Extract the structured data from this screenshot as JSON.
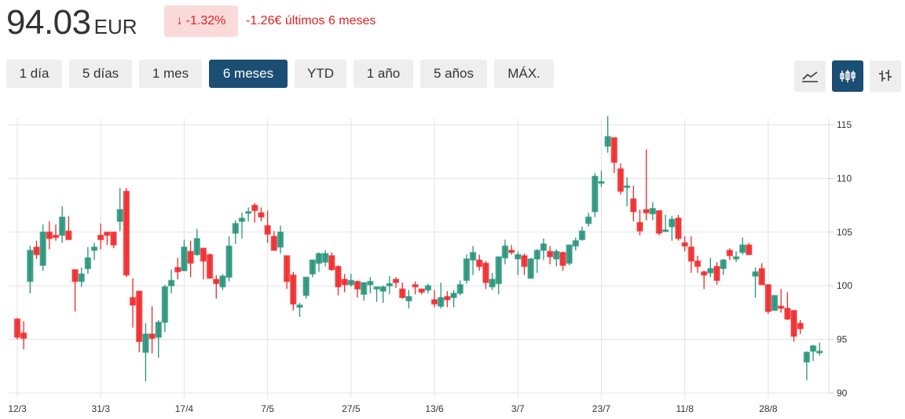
{
  "header": {
    "price": "94.03",
    "currency": "EUR",
    "badge_icon": "arrow-down-icon",
    "badge_text": "-1.32%",
    "change_text": "-1.26€ últimos 6 meses",
    "down_color": "#e0211f"
  },
  "ranges": [
    {
      "label": "1 día"
    },
    {
      "label": "5 días"
    },
    {
      "label": "1 mes"
    },
    {
      "label": "6 meses",
      "active": true
    },
    {
      "label": "YTD"
    },
    {
      "label": "1 año"
    },
    {
      "label": "5 años"
    },
    {
      "label": "MÁX."
    }
  ],
  "chart_types": [
    {
      "name": "line-chart-icon"
    },
    {
      "name": "candlestick-chart-icon",
      "active": true
    },
    {
      "name": "ohlc-chart-icon"
    }
  ],
  "chart_data": {
    "type": "candlestick",
    "up_color": "#26937a",
    "down_color": "#f0282a",
    "ylim": [
      90,
      115
    ],
    "yticks": [
      90,
      95,
      100,
      105,
      110,
      115
    ],
    "grid": true,
    "xticks": [
      {
        "label": "12/3",
        "index": 0
      },
      {
        "label": "31/3",
        "index": 13
      },
      {
        "label": "17/4",
        "index": 26
      },
      {
        "label": "7/5",
        "index": 39
      },
      {
        "label": "27/5",
        "index": 52
      },
      {
        "label": "13/6",
        "index": 65
      },
      {
        "label": "3/7",
        "index": 78
      },
      {
        "label": "23/7",
        "index": 91
      },
      {
        "label": "11/8",
        "index": 104
      },
      {
        "label": "28/8",
        "index": 117
      }
    ],
    "ohlc": [
      [
        96.9,
        97.0,
        95.0,
        95.2
      ],
      [
        95.6,
        96.7,
        94.1,
        95.1
      ],
      [
        100.4,
        103.7,
        99.3,
        103.3
      ],
      [
        103.6,
        104.2,
        102.5,
        102.9
      ],
      [
        101.9,
        105.7,
        101.4,
        105.0
      ],
      [
        105.0,
        106.0,
        103.4,
        104.4
      ],
      [
        104.7,
        105.7,
        104.2,
        104.5
      ],
      [
        104.7,
        107.4,
        104.0,
        106.4
      ],
      [
        105.1,
        106.5,
        104.3,
        104.3
      ],
      [
        101.5,
        101.5,
        97.6,
        100.4
      ],
      [
        100.4,
        101.7,
        99.9,
        101.1
      ],
      [
        101.6,
        103.6,
        101.1,
        102.6
      ],
      [
        103.3,
        104.0,
        102.4,
        103.6
      ],
      [
        104.7,
        105.8,
        103.4,
        104.3
      ],
      [
        105.0,
        105.0,
        103.8,
        104.7
      ],
      [
        105.0,
        105.0,
        103.5,
        103.8
      ],
      [
        106.0,
        109.1,
        105.1,
        107.1
      ],
      [
        108.8,
        109.1,
        100.8,
        101.0
      ],
      [
        98.9,
        100.7,
        96.1,
        98.2
      ],
      [
        99.5,
        99.5,
        93.8,
        94.8
      ],
      [
        93.8,
        96.5,
        91.1,
        95.5
      ],
      [
        95.5,
        98.1,
        93.7,
        95.1
      ],
      [
        95.2,
        96.8,
        93.3,
        96.6
      ],
      [
        96.6,
        100.1,
        95.7,
        99.9
      ],
      [
        100.0,
        101.5,
        99.3,
        100.5
      ],
      [
        101.7,
        102.6,
        100.6,
        101.3
      ],
      [
        101.4,
        104.3,
        101.4,
        103.6
      ],
      [
        103.2,
        104.2,
        100.8,
        102.1
      ],
      [
        102.9,
        105.3,
        102.8,
        104.4
      ],
      [
        103.5,
        103.5,
        100.6,
        102.3
      ],
      [
        102.9,
        103.0,
        100.7,
        100.7
      ],
      [
        100.6,
        101.0,
        98.8,
        100.2
      ],
      [
        99.9,
        101.1,
        99.6,
        100.9
      ],
      [
        100.8,
        104.6,
        100.4,
        103.7
      ],
      [
        104.9,
        106.1,
        103.9,
        105.8
      ],
      [
        106.0,
        106.8,
        104.4,
        106.3
      ],
      [
        106.8,
        107.3,
        106.0,
        106.9
      ],
      [
        107.5,
        107.7,
        105.9,
        107.0
      ],
      [
        106.8,
        107.3,
        106.0,
        106.4
      ],
      [
        105.6,
        107.0,
        104.0,
        104.8
      ],
      [
        104.6,
        105.1,
        103.3,
        103.3
      ],
      [
        103.6,
        105.6,
        103.0,
        105.0
      ],
      [
        102.8,
        102.8,
        99.7,
        100.4
      ],
      [
        101.0,
        101.3,
        97.7,
        98.3
      ],
      [
        98.0,
        98.4,
        97.1,
        98.2
      ],
      [
        99.1,
        100.8,
        98.8,
        100.8
      ],
      [
        101.1,
        102.4,
        100.8,
        102.4
      ],
      [
        102.1,
        103.1,
        101.3,
        103.0
      ],
      [
        102.2,
        103.3,
        101.8,
        103.0
      ],
      [
        102.8,
        103.1,
        101.4,
        101.5
      ],
      [
        101.8,
        101.9,
        99.1,
        99.9
      ],
      [
        100.6,
        101.1,
        99.4,
        100.1
      ],
      [
        100.1,
        101.1,
        99.9,
        100.5
      ],
      [
        100.4,
        100.5,
        98.9,
        99.7
      ],
      [
        99.2,
        100.3,
        98.6,
        100.3
      ],
      [
        100.1,
        100.8,
        99.3,
        100.4
      ],
      [
        99.7,
        99.9,
        98.5,
        99.9
      ],
      [
        99.5,
        100.0,
        98.4,
        99.9
      ],
      [
        100.0,
        100.9,
        99.2,
        100.2
      ],
      [
        100.6,
        100.8,
        99.8,
        100.3
      ],
      [
        99.7,
        100.3,
        98.8,
        98.9
      ],
      [
        98.6,
        99.6,
        97.9,
        99.0
      ],
      [
        100.1,
        100.4,
        99.2,
        99.9
      ],
      [
        99.7,
        99.7,
        99.2,
        99.4
      ],
      [
        99.6,
        100.2,
        99.3,
        100.0
      ],
      [
        98.7,
        99.6,
        98.0,
        98.3
      ],
      [
        98.1,
        100.3,
        97.9,
        98.9
      ],
      [
        99.0,
        99.5,
        98.0,
        98.7
      ],
      [
        98.9,
        99.6,
        98.0,
        99.3
      ],
      [
        99.3,
        100.5,
        99.1,
        100.1
      ],
      [
        100.5,
        102.9,
        100.2,
        102.5
      ],
      [
        102.4,
        103.7,
        101.0,
        103.1
      ],
      [
        102.4,
        102.9,
        101.4,
        101.8
      ],
      [
        102.1,
        102.3,
        99.7,
        100.3
      ],
      [
        99.9,
        101.2,
        99.6,
        100.6
      ],
      [
        100.2,
        102.7,
        99.2,
        102.7
      ],
      [
        102.6,
        104.3,
        102.0,
        103.7
      ],
      [
        103.3,
        103.8,
        102.9,
        103.1
      ],
      [
        102.5,
        103.2,
        101.0,
        102.9
      ],
      [
        102.8,
        103.0,
        101.0,
        101.8
      ],
      [
        100.7,
        102.6,
        100.7,
        102.5
      ],
      [
        102.5,
        103.4,
        101.2,
        103.3
      ],
      [
        103.3,
        104.4,
        102.4,
        103.9
      ],
      [
        103.2,
        103.7,
        102.0,
        102.7
      ],
      [
        102.5,
        103.4,
        101.8,
        103.2
      ],
      [
        103.1,
        103.2,
        101.4,
        101.9
      ],
      [
        102.1,
        103.8,
        101.9,
        103.8
      ],
      [
        103.7,
        104.5,
        103.3,
        104.2
      ],
      [
        104.3,
        105.5,
        104.2,
        105.1
      ],
      [
        105.8,
        106.8,
        105.5,
        106.4
      ],
      [
        106.9,
        110.5,
        106.4,
        110.2
      ],
      [
        109.6,
        110.7,
        109.2,
        109.7
      ],
      [
        113.0,
        115.8,
        112.4,
        113.9
      ],
      [
        113.8,
        113.8,
        110.5,
        111.5
      ],
      [
        110.9,
        111.4,
        108.5,
        108.8
      ],
      [
        109.2,
        110.1,
        107.4,
        109.3
      ],
      [
        108.1,
        109.3,
        106.0,
        106.9
      ],
      [
        105.9,
        107.1,
        104.7,
        105.1
      ],
      [
        107.1,
        112.7,
        106.1,
        106.8
      ],
      [
        106.7,
        107.8,
        106.1,
        107.2
      ],
      [
        107.0,
        107.0,
        104.7,
        104.9
      ],
      [
        105.1,
        106.6,
        105.1,
        105.2
      ],
      [
        105.5,
        106.5,
        104.2,
        106.2
      ],
      [
        106.3,
        106.6,
        104.2,
        104.4
      ],
      [
        104.0,
        104.6,
        103.2,
        103.7
      ],
      [
        103.6,
        104.6,
        101.2,
        102.3
      ],
      [
        102.3,
        102.8,
        101.2,
        101.8
      ],
      [
        101.3,
        101.4,
        99.7,
        101.0
      ],
      [
        101.2,
        102.6,
        100.8,
        101.6
      ],
      [
        101.8,
        102.2,
        100.1,
        100.5
      ],
      [
        101.6,
        102.5,
        101.0,
        102.4
      ],
      [
        103.3,
        103.5,
        102.4,
        102.8
      ],
      [
        102.5,
        103.2,
        102.2,
        102.7
      ],
      [
        103.1,
        104.5,
        102.9,
        103.8
      ],
      [
        103.8,
        104.0,
        102.9,
        102.9
      ],
      [
        100.9,
        101.7,
        98.9,
        101.3
      ],
      [
        101.6,
        102.1,
        100.1,
        100.1
      ],
      [
        100.1,
        100.1,
        97.4,
        97.6
      ],
      [
        97.7,
        99.1,
        97.7,
        99.1
      ],
      [
        98.1,
        99.7,
        97.5,
        97.9
      ],
      [
        97.9,
        99.4,
        96.8,
        96.9
      ],
      [
        97.7,
        97.7,
        94.8,
        95.3
      ],
      [
        96.5,
        96.8,
        95.5,
        96.0
      ],
      [
        92.9,
        93.9,
        91.2,
        93.8
      ],
      [
        93.9,
        94.5,
        93.0,
        94.4
      ],
      [
        93.8,
        94.7,
        93.5,
        93.9
      ]
    ]
  }
}
